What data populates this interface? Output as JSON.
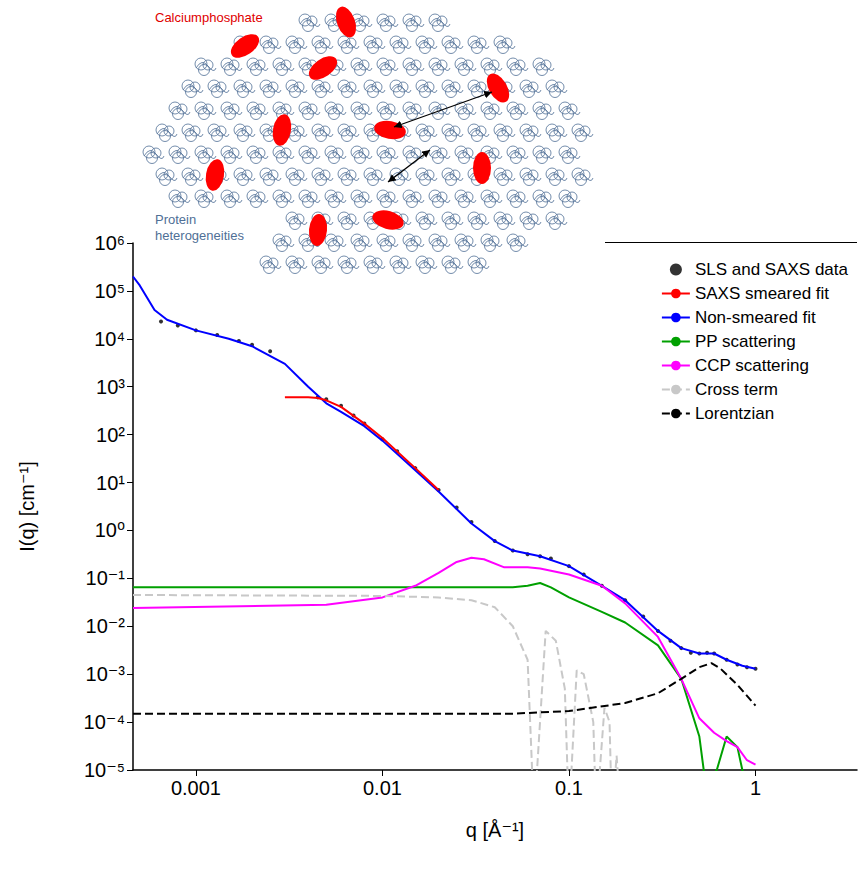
{
  "chart_data": {
    "type": "line",
    "x_label": "q [Å⁻¹]",
    "y_label": "I(q) [cm⁻¹]",
    "log": true,
    "grid": false,
    "legend": "upper right",
    "xlim": [
      0.00046,
      3.5
    ],
    "xticks": [
      0.001,
      0.01,
      0.1,
      1
    ],
    "ylim": [
      1e-05,
      1000000.0
    ],
    "yticks": [
      {
        "value": 1000000.0,
        "label": "10⁶"
      },
      {
        "value": 100000.0,
        "label": "10⁵"
      },
      {
        "value": 10000.0,
        "label": "10⁴"
      },
      {
        "value": 1000.0,
        "label": "10³"
      },
      {
        "value": 100,
        "label": "10²"
      },
      {
        "value": 10,
        "label": "10¹"
      },
      {
        "value": 1,
        "label": "10⁰"
      },
      {
        "value": 0.1,
        "label": "10⁻¹"
      },
      {
        "value": 0.01,
        "label": "10⁻²"
      },
      {
        "value": 0.001,
        "label": "10⁻³"
      },
      {
        "value": 0.0001,
        "label": "10⁻⁴"
      },
      {
        "value": 1e-05,
        "label": "10⁻⁵"
      }
    ],
    "series": [
      {
        "name": "SLS and SAXS data",
        "type": "scatter",
        "marker": "circle",
        "color": "#000000",
        "x": [
          0.00065,
          0.0008,
          0.001,
          0.0013,
          0.0017,
          0.002,
          0.0025,
          0.0045,
          0.005,
          0.006,
          0.007,
          0.008,
          0.01,
          0.012,
          0.015,
          0.02,
          0.025,
          0.03,
          0.04,
          0.05,
          0.06,
          0.07,
          0.08,
          0.1,
          0.12,
          0.15,
          0.2,
          0.25,
          0.3,
          0.35,
          0.4,
          0.45,
          0.5,
          0.55,
          0.6,
          0.7,
          0.8,
          0.9,
          1.0
        ],
        "values": [
          23000,
          19000,
          15000,
          12000,
          9000,
          7500,
          5500,
          600,
          550,
          400,
          250,
          170,
          80,
          45,
          20,
          7,
          3,
          1.5,
          0.6,
          0.38,
          0.32,
          0.29,
          0.26,
          0.18,
          0.12,
          0.07,
          0.035,
          0.016,
          0.008,
          0.005,
          0.0035,
          0.0028,
          0.0027,
          0.0028,
          0.0027,
          0.002,
          0.0016,
          0.0014,
          0.0013
        ]
      },
      {
        "name": "SAXS smeared fit",
        "type": "line",
        "line_style": "solid",
        "color": "#ff0000",
        "x": [
          0.003,
          0.004,
          0.0045,
          0.005,
          0.006,
          0.008,
          0.01,
          0.015,
          0.02
        ],
        "values": [
          600,
          600,
          580,
          520,
          380,
          170,
          85,
          20,
          7
        ]
      },
      {
        "name": "Non-smeared fit",
        "type": "line",
        "line_style": "solid",
        "color": "#0000ff",
        "x": [
          0.00046,
          0.0005,
          0.0006,
          0.0007,
          0.001,
          0.0015,
          0.002,
          0.003,
          0.004,
          0.005,
          0.006,
          0.008,
          0.01,
          0.015,
          0.02,
          0.03,
          0.04,
          0.05,
          0.07,
          0.1,
          0.15,
          0.2,
          0.3,
          0.4,
          0.5,
          0.6,
          0.7,
          0.85,
          1.0
        ],
        "values": [
          200000,
          130000,
          40000,
          25000,
          15000,
          10000,
          7000,
          3000,
          1000,
          450,
          300,
          150,
          75,
          18,
          6.5,
          1.4,
          0.6,
          0.38,
          0.29,
          0.18,
          0.07,
          0.035,
          0.008,
          0.0035,
          0.0027,
          0.0027,
          0.002,
          0.0015,
          0.0013
        ]
      },
      {
        "name": "PP scattering",
        "type": "line",
        "line_style": "solid",
        "color": "#00a000",
        "x": [
          0.00046,
          0.01,
          0.05,
          0.06,
          0.07,
          0.08,
          0.1,
          0.15,
          0.2,
          0.3,
          0.4,
          0.5,
          0.54,
          0.62,
          0.7,
          0.8,
          0.85,
          0.9
        ],
        "values": [
          0.065,
          0.065,
          0.065,
          0.07,
          0.08,
          0.065,
          0.04,
          0.02,
          0.012,
          0.004,
          0.0008,
          5e-05,
          5e-06,
          1e-05,
          5e-05,
          3e-05,
          1e-05,
          3e-06
        ]
      },
      {
        "name": "CCP scattering",
        "type": "line",
        "line_style": "solid",
        "color": "#ff00ff",
        "x": [
          0.00046,
          0.005,
          0.01,
          0.015,
          0.02,
          0.025,
          0.03,
          0.035,
          0.045,
          0.06,
          0.07,
          0.1,
          0.15,
          0.2,
          0.3,
          0.4,
          0.5,
          0.6,
          0.7,
          0.8,
          0.9,
          1.0
        ],
        "values": [
          0.024,
          0.028,
          0.04,
          0.07,
          0.13,
          0.22,
          0.27,
          0.25,
          0.17,
          0.17,
          0.16,
          0.12,
          0.07,
          0.03,
          0.006,
          0.0008,
          0.00012,
          6e-05,
          4e-05,
          3e-05,
          1.6e-05,
          1.3e-05
        ]
      },
      {
        "name": "Cross term",
        "type": "line",
        "line_style": "dashed",
        "color": "#c8c8c8",
        "x": [
          0.00046,
          0.01,
          0.02,
          0.03,
          0.04,
          0.05,
          0.06,
          0.065,
          0.075,
          0.085,
          0.095,
          0.1,
          0.11,
          0.12,
          0.135,
          0.14,
          0.155,
          0.165,
          0.17,
          0.18,
          0.19
        ],
        "values": [
          0.045,
          0.043,
          0.04,
          0.035,
          0.025,
          0.01,
          0.002,
          1e-06,
          0.008,
          0.005,
          0.0005,
          1e-06,
          0.0012,
          0.001,
          0.0001,
          1e-06,
          0.0002,
          0.0001,
          1e-06,
          2e-05,
          1e-06
        ]
      },
      {
        "name": "Lorentzian",
        "type": "line",
        "line_style": "dashed",
        "color": "#000000",
        "x": [
          0.00046,
          0.05,
          0.1,
          0.2,
          0.3,
          0.4,
          0.5,
          0.58,
          0.65,
          0.8,
          1.0
        ],
        "values": [
          0.00015,
          0.00015,
          0.00017,
          0.00025,
          0.0004,
          0.0008,
          0.0014,
          0.0017,
          0.0013,
          0.0006,
          0.00022
        ]
      }
    ]
  },
  "diagram": {
    "mineral_label": "Calciumphosphate",
    "protein_label": "Protein heterogeneities"
  }
}
